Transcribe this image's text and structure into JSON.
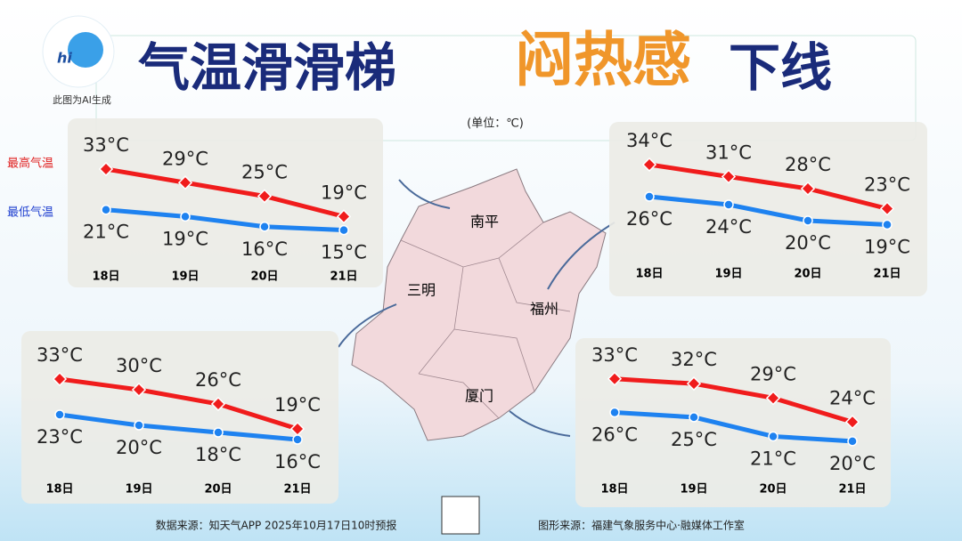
{
  "logo_text": "hi",
  "ai_note": "此图为AI生成",
  "header": {
    "title_part1": "气温滑滑梯",
    "title_part2": "闷热感",
    "title_part3": "下线",
    "unit": "(单位：℃)"
  },
  "legend": [
    "最高气温",
    "最低气温"
  ],
  "map_labels": [
    "南平",
    "三明",
    "福州",
    "厦门"
  ],
  "footer": {
    "source": "数据来源：知天气APP  2025年10月17日10时预报",
    "graphic": "图形来源：福建气象服务中心·融媒体工作室"
  },
  "chart_data": [
    {
      "type": "line",
      "categories": [
        "18日",
        "19日",
        "20日",
        "21日"
      ],
      "ylim": [
        12,
        36
      ],
      "series": [
        {
          "color": "#f01c1c",
          "values": [
            33,
            29,
            25,
            19
          ],
          "value_labels": [
            "33°C",
            "29°C",
            "25°C",
            "19°C"
          ]
        },
        {
          "color": "#1e82f0",
          "values": [
            21,
            19,
            16,
            15
          ],
          "value_labels": [
            "21°C",
            "19°C",
            "16°C",
            "15°C"
          ]
        }
      ]
    },
    {
      "type": "line",
      "categories": [
        "18日",
        "19日",
        "20日",
        "21日"
      ],
      "ylim": [
        16,
        37
      ],
      "series": [
        {
          "color": "#f01c1c",
          "values": [
            34,
            31,
            28,
            23
          ],
          "value_labels": [
            "34°C",
            "31°C",
            "28°C",
            "23°C"
          ]
        },
        {
          "color": "#1e82f0",
          "values": [
            26,
            24,
            20,
            19
          ],
          "value_labels": [
            "26°C",
            "24°C",
            "20°C",
            "19°C"
          ]
        }
      ]
    },
    {
      "type": "line",
      "categories": [
        "18日",
        "19日",
        "20日",
        "21日"
      ],
      "ylim": [
        13,
        36
      ],
      "series": [
        {
          "color": "#f01c1c",
          "values": [
            33,
            30,
            26,
            19
          ],
          "value_labels": [
            "33°C",
            "30°C",
            "26°C",
            "19°C"
          ]
        },
        {
          "color": "#1e82f0",
          "values": [
            23,
            20,
            18,
            16
          ],
          "value_labels": [
            "23°C",
            "20°C",
            "18°C",
            "16°C"
          ]
        }
      ]
    },
    {
      "type": "line",
      "categories": [
        "18日",
        "19日",
        "20日",
        "21日"
      ],
      "ylim": [
        17,
        35
      ],
      "series": [
        {
          "color": "#f01c1c",
          "values": [
            33,
            32,
            29,
            24
          ],
          "value_labels": [
            "33°C",
            "32°C",
            "29°C",
            "24°C"
          ]
        },
        {
          "color": "#1e82f0",
          "values": [
            26,
            25,
            21,
            20
          ],
          "value_labels": [
            "26°C",
            "25°C",
            "21°C",
            "20°C"
          ]
        }
      ]
    }
  ]
}
